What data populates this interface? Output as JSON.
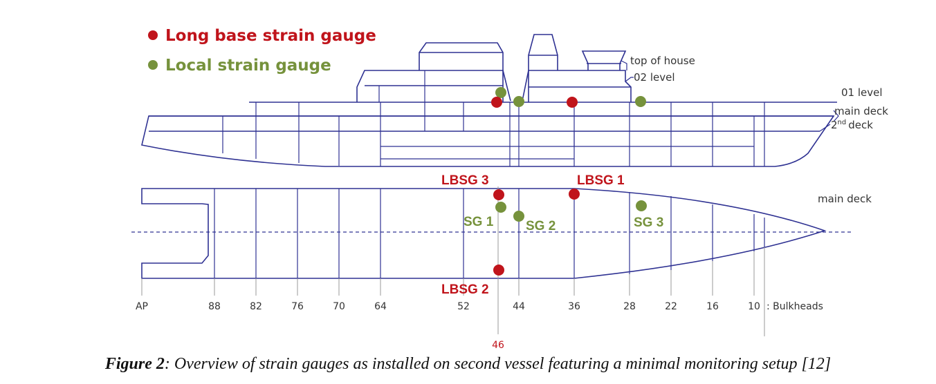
{
  "colors": {
    "hull": "#2e3192",
    "long_base": "#c0141b",
    "local": "#76923c",
    "text": "#333333"
  },
  "legend": {
    "long_base": "Long base strain gauge",
    "local": "Local strain gauge"
  },
  "side_view_labels": {
    "top_of_house": "top of house",
    "level_02": "02 level",
    "level_01": "01 level",
    "main_deck": "main deck",
    "second_deck_num": "2",
    "second_deck_sup": "nd",
    "second_deck_word": "deck"
  },
  "plan_view_labels": {
    "main_deck": "main deck"
  },
  "gauges": {
    "lbsg1": "LBSG 1",
    "lbsg2": "LBSG 2",
    "lbsg3": "LBSG 3",
    "sg1": "SG 1",
    "sg2": "SG 2",
    "sg3": "SG 3"
  },
  "bulkheads": {
    "labels": [
      "AP",
      "88",
      "82",
      "76",
      "70",
      "64",
      "52",
      "44",
      "36",
      "28",
      "22",
      "16",
      "10"
    ],
    "marked": "46",
    "legend": ": Bulkheads"
  },
  "caption": {
    "prefix": "Figure 2",
    "text": ": Overview of strain gauges as installed on second vessel featuring a minimal monitoring setup [12]"
  }
}
